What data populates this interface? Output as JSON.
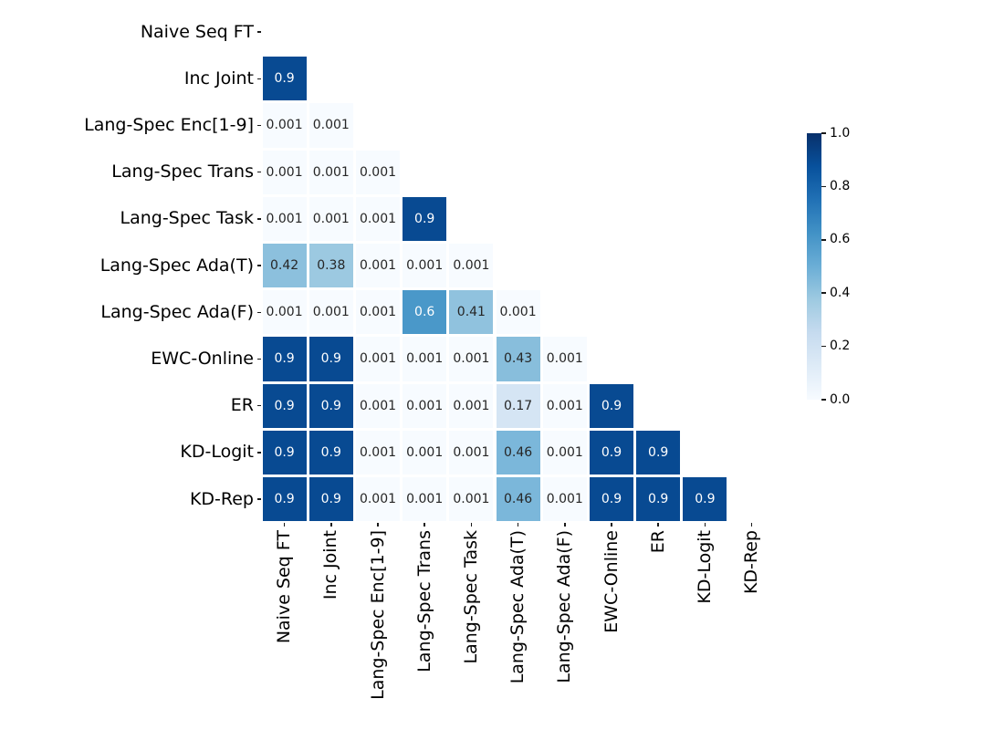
{
  "chart_data": {
    "type": "heatmap",
    "title": "",
    "layout": "lower-triangle-masked-diagonal",
    "grid": false,
    "row_labels": [
      "Naive Seq FT",
      "Inc Joint",
      "Lang-Spec Enc[1-9]",
      "Lang-Spec Trans",
      "Lang-Spec Task",
      "Lang-Spec Ada(T)",
      "Lang-Spec Ada(F)",
      "EWC-Online",
      "ER",
      "KD-Logit",
      "KD-Rep"
    ],
    "col_labels": [
      "Naive Seq FT",
      "Inc Joint",
      "Lang-Spec Enc[1-9]",
      "Lang-Spec Trans",
      "Lang-Spec Task",
      "Lang-Spec Ada(T)",
      "Lang-Spec Ada(F)",
      "EWC-Online",
      "ER",
      "KD-Logit",
      "KD-Rep"
    ],
    "matrix": [
      [
        null,
        null,
        null,
        null,
        null,
        null,
        null,
        null,
        null,
        null,
        null
      ],
      [
        0.9,
        null,
        null,
        null,
        null,
        null,
        null,
        null,
        null,
        null,
        null
      ],
      [
        0.001,
        0.001,
        null,
        null,
        null,
        null,
        null,
        null,
        null,
        null,
        null
      ],
      [
        0.001,
        0.001,
        0.001,
        null,
        null,
        null,
        null,
        null,
        null,
        null,
        null
      ],
      [
        0.001,
        0.001,
        0.001,
        0.9,
        null,
        null,
        null,
        null,
        null,
        null,
        null
      ],
      [
        0.42,
        0.38,
        0.001,
        0.001,
        0.001,
        null,
        null,
        null,
        null,
        null,
        null
      ],
      [
        0.001,
        0.001,
        0.001,
        0.6,
        0.41,
        0.001,
        null,
        null,
        null,
        null,
        null
      ],
      [
        0.9,
        0.9,
        0.001,
        0.001,
        0.001,
        0.43,
        0.001,
        null,
        null,
        null,
        null
      ],
      [
        0.9,
        0.9,
        0.001,
        0.001,
        0.001,
        0.17,
        0.001,
        0.9,
        null,
        null,
        null
      ],
      [
        0.9,
        0.9,
        0.001,
        0.001,
        0.001,
        0.46,
        0.001,
        0.9,
        0.9,
        null,
        null
      ],
      [
        0.9,
        0.9,
        0.001,
        0.001,
        0.001,
        0.46,
        0.001,
        0.9,
        0.9,
        0.9,
        null
      ]
    ],
    "vmin": 0.0,
    "vmax": 1.0,
    "colormap": {
      "name": "Blues",
      "stops": [
        {
          "pos": 0.0,
          "color": "#f7fbff"
        },
        {
          "pos": 0.125,
          "color": "#deebf7"
        },
        {
          "pos": 0.25,
          "color": "#c6dbef"
        },
        {
          "pos": 0.375,
          "color": "#9ecae1"
        },
        {
          "pos": 0.5,
          "color": "#6baed6"
        },
        {
          "pos": 0.625,
          "color": "#4292c6"
        },
        {
          "pos": 0.75,
          "color": "#2171b5"
        },
        {
          "pos": 0.875,
          "color": "#08519c"
        },
        {
          "pos": 1.0,
          "color": "#08306b"
        }
      ]
    },
    "colorbar": {
      "position": "right",
      "tick_values": [
        1.0,
        0.8,
        0.6,
        0.4,
        0.2,
        0.0
      ],
      "tick_labels": [
        "1.0",
        "0.8",
        "0.6",
        "0.4",
        "0.2",
        "0.0"
      ]
    },
    "annotation": {
      "enabled": true,
      "dark_text_color": "#262626",
      "light_text_color": "#ffffff",
      "light_text_threshold": 0.5
    },
    "cell_gap_color": "#ffffff",
    "background_color": "#ffffff"
  }
}
